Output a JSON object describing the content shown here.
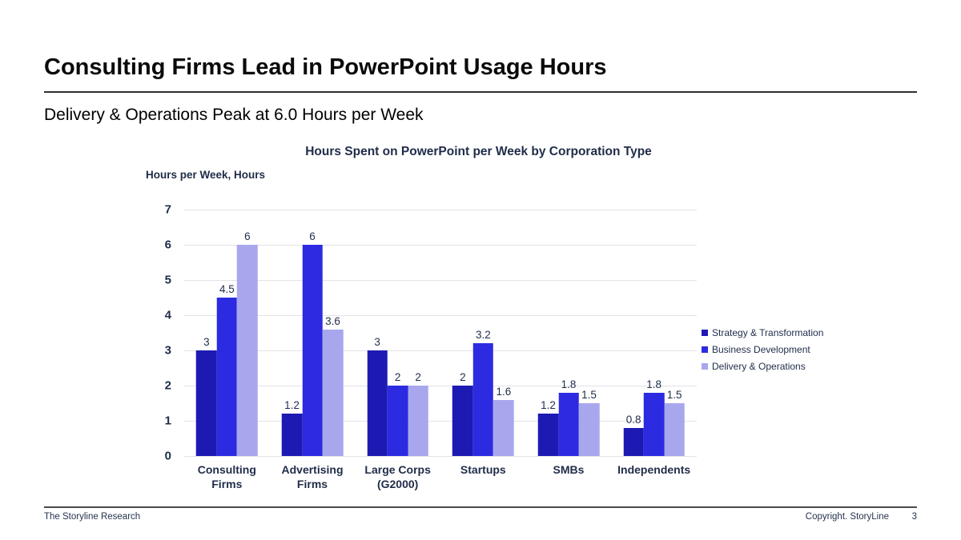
{
  "page": {
    "title": "Consulting Firms Lead in PowerPoint Usage Hours",
    "subtitle": "Delivery & Operations Peak at 6.0 Hours per Week"
  },
  "chart_data": {
    "type": "bar",
    "title": "Hours Spent on PowerPoint per Week by Corporation Type",
    "ylabel": "Hours per Week, Hours",
    "categories": [
      "Consulting\nFirms",
      "Advertising\nFirms",
      "Large Corps\n(G2000)",
      "Startups",
      "SMBs",
      "Independents"
    ],
    "series": [
      {
        "name": "Strategy & Transformation",
        "color": "#1D1AB3",
        "values": [
          3,
          1.2,
          3,
          2,
          1.2,
          0.8
        ]
      },
      {
        "name": "Business Development",
        "color": "#2C2BE1",
        "values": [
          4.5,
          6,
          2,
          3.2,
          1.8,
          1.8
        ]
      },
      {
        "name": "Delivery & Operations",
        "color": "#A8A7EE",
        "values": [
          6,
          3.6,
          2,
          1.6,
          1.5,
          1.5
        ]
      }
    ],
    "ylim": [
      0,
      7
    ],
    "yticks": [
      0,
      1,
      2,
      3,
      4,
      5,
      6,
      7
    ],
    "grid": true,
    "legend_position": "right",
    "value_labels": true
  },
  "footer": {
    "left": "The Storyline Research",
    "copyright": "Copyright. StoryLine",
    "page_number": "3"
  }
}
